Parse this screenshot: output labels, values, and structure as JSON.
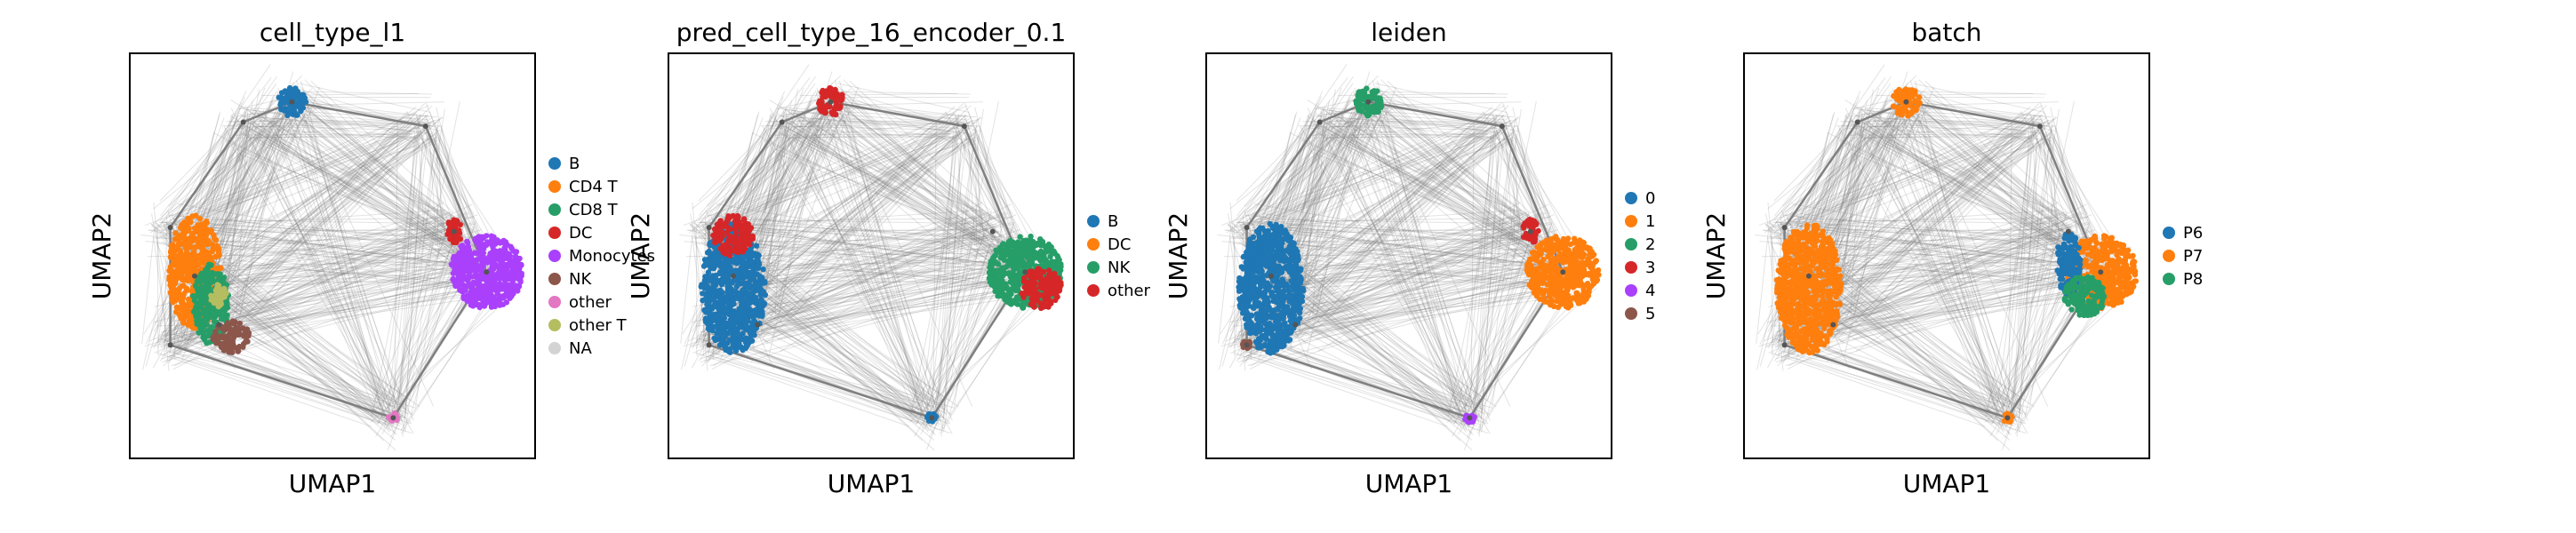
{
  "chart_data": [
    {
      "type": "scatter",
      "subtype": "umap-embedding-with-paga-graph",
      "title": "cell_type_l1",
      "xlabel": "UMAP1",
      "ylabel": "UMAP2",
      "xticks": false,
      "yticks": false,
      "grid": false,
      "legend_position": "right",
      "legend": [
        {
          "label": "B",
          "color": "#1f77b4"
        },
        {
          "label": "CD4 T",
          "color": "#ff7f0e"
        },
        {
          "label": "CD8 T",
          "color": "#279e68"
        },
        {
          "label": "DC",
          "color": "#d62728"
        },
        {
          "label": "Monocytes",
          "color": "#aa40fc"
        },
        {
          "label": "NK",
          "color": "#8c564b"
        },
        {
          "label": "other",
          "color": "#e377c2"
        },
        {
          "label": "other T",
          "color": "#b5bd61"
        },
        {
          "label": "NA",
          "color": "#d3d3d3"
        }
      ],
      "clusters": [
        {
          "category": "B",
          "x": 0.4,
          "y": 0.88,
          "rx": 0.035,
          "ry": 0.035
        },
        {
          "category": "CD4 T",
          "x": 0.16,
          "y": 0.46,
          "rx": 0.065,
          "ry": 0.14
        },
        {
          "category": "CD8 T",
          "x": 0.2,
          "y": 0.38,
          "rx": 0.045,
          "ry": 0.1
        },
        {
          "category": "NK",
          "x": 0.25,
          "y": 0.3,
          "rx": 0.045,
          "ry": 0.04
        },
        {
          "category": "Monocytes",
          "x": 0.88,
          "y": 0.46,
          "rx": 0.09,
          "ry": 0.09
        },
        {
          "category": "DC",
          "x": 0.8,
          "y": 0.56,
          "rx": 0.02,
          "ry": 0.03
        },
        {
          "category": "other",
          "x": 0.65,
          "y": 0.1,
          "rx": 0.012,
          "ry": 0.012
        },
        {
          "category": "other T",
          "x": 0.22,
          "y": 0.4,
          "rx": 0.02,
          "ry": 0.03
        }
      ]
    },
    {
      "type": "scatter",
      "subtype": "umap-embedding-with-paga-graph",
      "title": "pred_cell_type_16_encoder_0.1",
      "xlabel": "UMAP1",
      "ylabel": "UMAP2",
      "xticks": false,
      "yticks": false,
      "grid": false,
      "legend_position": "right",
      "legend": [
        {
          "label": "B",
          "color": "#1f77b4"
        },
        {
          "label": "DC",
          "color": "#ff7f0e"
        },
        {
          "label": "NK",
          "color": "#279e68"
        },
        {
          "label": "other",
          "color": "#d62728"
        }
      ],
      "clusters": [
        {
          "category": "B",
          "x": 0.16,
          "y": 0.42,
          "rx": 0.08,
          "ry": 0.16
        },
        {
          "category": "other",
          "x": 0.4,
          "y": 0.88,
          "rx": 0.035,
          "ry": 0.035
        },
        {
          "category": "other",
          "x": 0.16,
          "y": 0.55,
          "rx": 0.05,
          "ry": 0.05
        },
        {
          "category": "NK",
          "x": 0.88,
          "y": 0.46,
          "rx": 0.09,
          "ry": 0.09
        },
        {
          "category": "other",
          "x": 0.92,
          "y": 0.42,
          "rx": 0.05,
          "ry": 0.05
        },
        {
          "category": "B",
          "x": 0.65,
          "y": 0.1,
          "rx": 0.012,
          "ry": 0.012
        }
      ]
    },
    {
      "type": "scatter",
      "subtype": "umap-embedding-with-paga-graph",
      "title": "leiden",
      "xlabel": "UMAP1",
      "ylabel": "UMAP2",
      "xticks": false,
      "yticks": false,
      "grid": false,
      "legend_position": "right",
      "legend": [
        {
          "label": "0",
          "color": "#1f77b4"
        },
        {
          "label": "1",
          "color": "#ff7f0e"
        },
        {
          "label": "2",
          "color": "#279e68"
        },
        {
          "label": "3",
          "color": "#d62728"
        },
        {
          "label": "4",
          "color": "#aa40fc"
        },
        {
          "label": "5",
          "color": "#8c564b"
        }
      ],
      "clusters": [
        {
          "category": "0",
          "x": 0.16,
          "y": 0.42,
          "rx": 0.08,
          "ry": 0.16
        },
        {
          "category": "2",
          "x": 0.4,
          "y": 0.88,
          "rx": 0.035,
          "ry": 0.035
        },
        {
          "category": "1",
          "x": 0.88,
          "y": 0.46,
          "rx": 0.09,
          "ry": 0.09
        },
        {
          "category": "3",
          "x": 0.8,
          "y": 0.56,
          "rx": 0.02,
          "ry": 0.03
        },
        {
          "category": "4",
          "x": 0.65,
          "y": 0.1,
          "rx": 0.012,
          "ry": 0.012
        },
        {
          "category": "5",
          "x": 0.1,
          "y": 0.28,
          "rx": 0.01,
          "ry": 0.01
        }
      ]
    },
    {
      "type": "scatter",
      "subtype": "umap-embedding-with-paga-graph",
      "title": "batch",
      "xlabel": "UMAP1",
      "ylabel": "UMAP2",
      "xticks": false,
      "yticks": false,
      "grid": false,
      "legend_position": "right",
      "legend": [
        {
          "label": "P6",
          "color": "#1f77b4"
        },
        {
          "label": "P7",
          "color": "#ff7f0e"
        },
        {
          "label": "P8",
          "color": "#279e68"
        }
      ],
      "clusters": [
        {
          "category": "P7",
          "x": 0.16,
          "y": 0.42,
          "rx": 0.08,
          "ry": 0.16
        },
        {
          "category": "P7",
          "x": 0.4,
          "y": 0.88,
          "rx": 0.035,
          "ry": 0.035
        },
        {
          "category": "P7",
          "x": 0.88,
          "y": 0.46,
          "rx": 0.09,
          "ry": 0.09
        },
        {
          "category": "P6",
          "x": 0.8,
          "y": 0.48,
          "rx": 0.03,
          "ry": 0.08
        },
        {
          "category": "P8",
          "x": 0.84,
          "y": 0.4,
          "rx": 0.05,
          "ry": 0.05
        },
        {
          "category": "P7",
          "x": 0.65,
          "y": 0.1,
          "rx": 0.012,
          "ry": 0.012
        }
      ]
    }
  ],
  "graph_nodes": [
    [
      0.4,
      0.88
    ],
    [
      0.28,
      0.83
    ],
    [
      0.73,
      0.82
    ],
    [
      0.1,
      0.57
    ],
    [
      0.16,
      0.45
    ],
    [
      0.22,
      0.33
    ],
    [
      0.1,
      0.28
    ],
    [
      0.8,
      0.56
    ],
    [
      0.88,
      0.46
    ],
    [
      0.65,
      0.1
    ]
  ],
  "graph_edge_color": "#808080"
}
